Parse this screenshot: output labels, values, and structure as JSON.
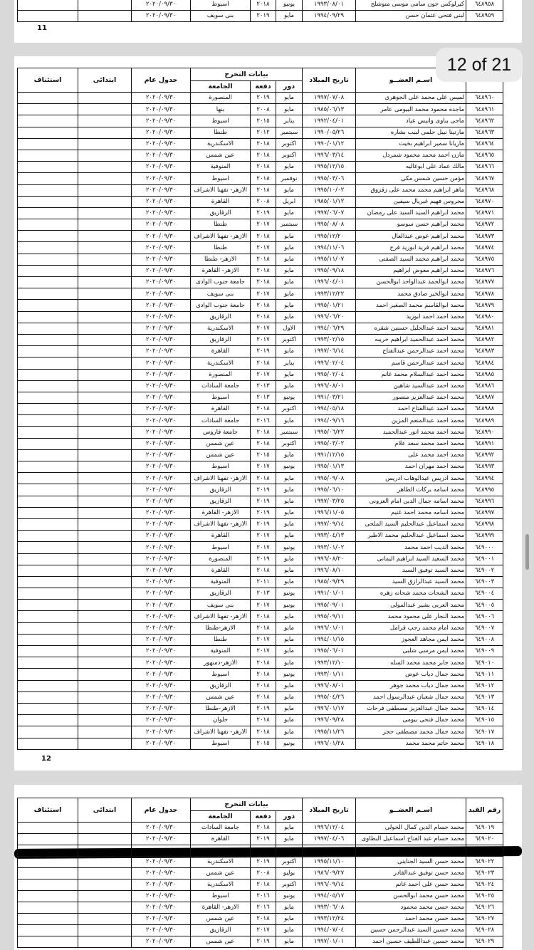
{
  "page_11": {
    "rows": [
      [
        "٦٤٨٩٥٨",
        "كيرلوكس جون سامى موسى متوشلح",
        "١٩٩٣/٠٨/٠١",
        "يونيو",
        "٢٠١٨",
        "اسيوط",
        "٢٠٢٠/٠٩/٣٠"
      ],
      [
        "٦٤٨٩٥٩",
        "لبنى فتحى عثمان حسن",
        "١٩٩٤/٠٩/٢٩",
        "مايو",
        "٢٠١٩",
        "بنى سويف",
        "٢٠٢٠/٠٩/٣٠"
      ]
    ],
    "page_number": "11"
  },
  "page_indicator": "12 of 21",
  "page_12": {
    "header": {
      "name": "اسـم العضــو",
      "birth_date": "تاريخ الميلاد",
      "graduation": "بيانات التخرج",
      "session": "دور",
      "batch": "دفعة",
      "university": "الجامعة",
      "general": "جدول عام",
      "primary": "ابتدائى",
      "appeal": "استئناف"
    },
    "rows": [
      [
        "٦٤٨٩٦٠",
        "لميس على محمد على الجوهرى",
        "١٩٩٧/٠٧/٠٨",
        "مايو",
        "٢٠١٩",
        "المنصورة",
        "٢٠٢٠/٠٩/٣٠"
      ],
      [
        "٦٤٨٩٦١",
        "ماجده محمود محمد البيومى عامر",
        "١٩٨٥/٠٦/١٣",
        "مايو",
        "٢٠٠٨",
        "بنها",
        "٢٠٢٠/٠٩/٣٠"
      ],
      [
        "٦٤٨٩٦٢",
        "ماجى بباوى وانيس عياد",
        "١٩٩٢/٠٤/٠١",
        "يناير",
        "٢٠١٥",
        "اسيوط",
        "٢٠٢٠/٠٩/٣٠"
      ],
      [
        "٦٤٨٩٦٣",
        "مارتينا نبيل حلمى لبيب بشاره",
        "١٩٩٠/٠٥/٢٦",
        "سبتمبر",
        "٢٠١٢",
        "طنطا",
        "٢٠٢٠/٠٩/٣٠"
      ],
      [
        "٦٤٨٩٦٤",
        "ماريانا سمير ابراهيم بخيت",
        "١٩٩٠/٠١/١٢",
        "اكتوبر",
        "٢٠١٨",
        "الاسكندرية",
        "٢٠٢٠/٠٩/٣٠"
      ],
      [
        "٦٤٨٩٦٥",
        "مازن احمد محمد محمود شمردل",
        "١٩٩٦/٠٣/١٤",
        "اكتوبر",
        "٢٠١٨",
        "عين شمس",
        "٢٠٢٠/٠٩/٣٠"
      ],
      [
        "٦٤٨٩٦٦",
        "مالك عماد على ابوغاليه",
        "١٩٩٥/١٢/١٥",
        "مايو",
        "٢٠١٨",
        "المنوفية",
        "٢٠٢٠/٠٩/٣٠"
      ],
      [
        "٦٤٨٩٦٧",
        "مؤمن حسين شمس مكى",
        "١٩٩٥/٠٣/٠٦",
        "نوفمبر",
        "٢٠١٨",
        "اسيوط",
        "٢٠٢٠/٠٩/٣٠"
      ],
      [
        "٦٤٨٩٦٨",
        "ماهر ابراهيم محمد محمد على زقزوق",
        "١٩٩٥/١٠/٠٢",
        "مايو",
        "٢٠١٨",
        "الازهر- تفهنا الاشراف",
        "٢٠٢٠/٠٩/٣٠"
      ],
      [
        "٦٤٨٩٧٠",
        "مجروس فهيم غبريال سيفين",
        "١٩٨٥/٠١/١٢",
        "ابريل",
        "٢٠٠٨",
        "القاهرة",
        "٢٠٢٠/٠٩/٣٠"
      ],
      [
        "٦٤٨٩٧١",
        "محمد ابراهيم السيد السيد على رمضان",
        "١٩٩٧/٠٦/٠٧",
        "مايو",
        "٢٠١٩",
        "الزقازيق",
        "٢٠٢٠/٠٩/٣٠"
      ],
      [
        "٦٤٨٩٧٢",
        "محمد ابراهيم حسن سوسو",
        "١٩٩٥/٠٨/٠٨",
        "سبتمبر",
        "٢٠١٧",
        "طنطا",
        "٢٠٢٠/٠٩/٣٠"
      ],
      [
        "٦٤٨٩٧٣",
        "محمد ابراهيم عوض عبدالعال",
        "١٩٩٥/١٢/٢٠",
        "مايو",
        "٢٠١٨",
        "الازهر- تفهنا الاشراف",
        "٢٠٢٠/٠٩/٣٠"
      ],
      [
        "٦٤٨٩٧٤",
        "محمد ابراهيم فريد ابوزيد فرج",
        "١٩٩٤/١١/٠٦",
        "مايو",
        "٢٠١٧",
        "طنطا",
        "٢٠٢٠/٠٩/٣٠"
      ],
      [
        "٦٤٨٩٧٥",
        "محمد ابراهيم محمد السيد الصفتى",
        "١٩٩٥/١١/٠٧",
        "مايو",
        "٢٠١٨",
        "الازهر- طنطا",
        "٢٠٢٠/٠٩/٣٠"
      ],
      [
        "٦٤٨٩٧٦",
        "محمد ابراهيم معوض ابراهيم",
        "١٩٩٥/٠٩/١٨",
        "مايو",
        "٢٠١٨",
        "الازهر- القاهرة",
        "٢٠٢٠/٠٩/٣٠"
      ],
      [
        "٦٤٨٩٧٧",
        "محمد ابوالحمد عبدالواحد ابوالحسن",
        "١٩٩٦/٠٤/٠١",
        "مايو",
        "٢٠١٨",
        "جامعة جنوب الوادى",
        "٢٠٢٠/٠٩/٣٠"
      ],
      [
        "٦٤٨٩٧٨",
        "محمد ابوالخير صادق محمد",
        "١٩٩٣/١٢/٢٢",
        "مايو",
        "٢٠١٧",
        "بنى سويف",
        "٢٠٢٠/٠٩/٣٠"
      ],
      [
        "٦٤٨٩٧٩",
        "محمد ابوالقاسم محمد الصغير احمد",
        "١٩٩٥/٠١/٢١",
        "مايو",
        "٢٠١٨",
        "جامعة جنوب الوادى",
        "٢٠٢٠/٠٩/٣٠"
      ],
      [
        "٦٤٨٩٨٠",
        "محمد احمد احمد ابوزيد",
        "١٩٩٦/٠٦/٢٠",
        "مايو",
        "٢٠١٨",
        "الزقازيق",
        "٢٠٢٠/٠٩/٣٠"
      ],
      [
        "٦٤٨٩٨١",
        "محمد احمد عبدالجليل حسنين شقره",
        "١٩٩٤/٠٦/٢٩",
        "الاول",
        "٢٠١٧",
        "الاسكندرية",
        "٢٠٢٠/٠٩/٣٠"
      ],
      [
        "٦٤٨٩٨٢",
        "محمد احمد عبدالحميد ابراهيم خريبه",
        "١٩٩٣/٠٢/١٥",
        "اكتوبر",
        "٢٠١٧",
        "الزقازيق",
        "٢٠٢٠/٠٩/٣٠"
      ],
      [
        "٦٤٨٩٨٣",
        "محمد احمد عبدالرحمن عبدالفتاح",
        "١٩٩٧/٠٦/١٤",
        "مايو",
        "٢٠١٩",
        "القاهرة",
        "٢٠٢٠/٠٩/٣٠"
      ],
      [
        "٦٤٨٩٨٤",
        "محمد احمد عبدالرحمن قاسم",
        "١٩٩٦/٠٢/٠٤",
        "يناير",
        "٢٠١٨",
        "الاسكندرية",
        "٢٠٢٠/٠٩/٣٠"
      ],
      [
        "٦٤٨٩٨٥",
        "محمد احمد عبدالسلام محمد غانم",
        "١٩٩٥/٠٢/٠٤",
        "مايو",
        "٢٠١٧",
        "المنصورة",
        "٢٠٢٠/٠٩/٣٠"
      ],
      [
        "٦٤٨٩٨٦",
        "محمد احمد عبدالسيد شاهين",
        "١٩٩٦/٠٨/٠١",
        "مايو",
        "٢٠١٣",
        "جامعة السادات",
        "٢٠٢٠/٠٩/٣٠"
      ],
      [
        "٦٤٨٩٨٧",
        "محمد احمد عبدالعزيز منصور",
        "١٩٩١/٠٣/٢١",
        "يونيو",
        "٢٠١٣",
        "اسيوط",
        "٢٠٢٠/٠٩/٣٠"
      ],
      [
        "٦٤٨٩٨٨",
        "محمد احمد عبدالفتاح احمد",
        "١٩٩٤/٠٥/١٨",
        "اكتوبر",
        "٢٠١٨",
        "القاهرة",
        "٢٠٢٠/٠٩/٣٠"
      ],
      [
        "٦٤٨٩٨٩",
        "محمد احمد عبدالمنعم المزين",
        "١٩٩٤/٠٩/١٦",
        "مايو",
        "٢٠١٦",
        "جامعة السادات",
        "٢٠٢٠/٠٩/٣٠"
      ],
      [
        "٦٤٨٩٩٠",
        "محمد احمد محمد انور عبدالحميد",
        "١٩٩٥/٠٦/٢٢",
        "سبتمبر",
        "٢٠١٨",
        "جامعة فاروس",
        "٢٠٢٠/٠٩/٣٠"
      ],
      [
        "٦٤٨٩٩١",
        "محمد احمد محمد سعد علام",
        "١٩٩٥/٠٣/٠٢",
        "اكتوبر",
        "٢٠١٨",
        "عين شمس",
        "٢٠٢٠/٠٩/٣٠"
      ],
      [
        "٦٤٨٩٩٢",
        "محمد احمد محمد على",
        "١٩٩١/١٢/١٥",
        "مايو",
        "٢٠١٥",
        "عين شمس",
        "٢٠٢٠/٠٩/٣٠"
      ],
      [
        "٦٤٨٩٩٣",
        "محمد احمد مهران احمد",
        "١٩٩٥/٠١/١٣",
        "يونيو",
        "٢٠١٧",
        "اسيوط",
        "٢٠٢٠/٠٩/٣٠"
      ],
      [
        "٦٤٨٩٩٤",
        "محمد ادريس عبدالوهاب ادريس",
        "١٩٩٥/٠٩/٠٨",
        "مايو",
        "٢٠١٨",
        "الازهر- تفهنا الاشراف",
        "٢٠٢٠/٠٩/٣٠"
      ],
      [
        "٦٤٨٩٩٥",
        "محمد اسامه بركات الطاهر",
        "١٩٩٥/٠٦/١٠",
        "مايو",
        "٢٠١٩",
        "الزقازيق",
        "٢٠٢٠/٠٩/٣٠"
      ],
      [
        "٦٤٨٩٩٦",
        "محمد اسامه جمال الدين امام العزونى",
        "١٩٩٧/٠٣/٢٥",
        "مايو",
        "٢٠١٩",
        "الزقازيق",
        "٢٠٢٠/٠٩/٣٠"
      ],
      [
        "٦٤٨٩٩٧",
        "محمد اسامه محمد احمد غنيم",
        "١٩٩٦/١١/٠٥",
        "مايو",
        "٢٠١٩",
        "الازهر- القاهرة",
        "٢٠٢٠/٠٩/٣٠"
      ],
      [
        "٦٤٨٩٩٨",
        "محمد اسماعيل عبدالحليم السيد الملجى",
        "١٩٩٧/٠٩/١٤",
        "مايو",
        "٢٠١٩",
        "الازهر- تفهنا الاشراف",
        "٢٠٢٠/٠٩/٣٠"
      ],
      [
        "٦٤٨٩٩٩",
        "محمد اسماعيل عبدالحليم محمد الاطير",
        "١٩٩٣/٠٤/١٣",
        "مايو",
        "٢٠١٧",
        "القاهرة",
        "٢٠٢٠/٠٩/٣٠"
      ],
      [
        "٦٤٩٠٠٠",
        "محمد الديب احمد محمد",
        "١٩٩٣/٠١/٠٢",
        "يونيو",
        "٢٠١٧",
        "اسيوط",
        "٢٠٢٠/٠٩/٣٠"
      ],
      [
        "٦٤٩٠٠١",
        "محمد السعيد السيد ابراهيم اليمانى",
        "١٩٩٦/٠٨/٢٠",
        "مايو",
        "٢٠١٩",
        "المنصورة",
        "٢٠٢٠/٠٩/٣٠"
      ],
      [
        "٦٤٩٠٠٢",
        "محمد السيد توفيق السيد",
        "١٩٩٦/٠٨/١٠",
        "مايو",
        "٢٠١٨",
        "القاهرة",
        "٢٠٢٠/٠٩/٣٠"
      ],
      [
        "٦٤٩٠٠٣",
        "محمد السيد عبدالرازق السيد",
        "١٩٨٥/٠٩/٢٩",
        "مايو",
        "٢٠١١",
        "المنوفية",
        "٢٠٢٠/٠٩/٣٠"
      ],
      [
        "٦٤٩٠٠٤",
        "محمد الشحات محمد شحاته زهره",
        "١٩٩١/٠١/٠١",
        "يونيو",
        "٢٠١٣",
        "الزقازيق",
        "٢٠٢٠/٠٩/٣٠"
      ],
      [
        "٦٤٩٠٠٥",
        "محمد العربى بشير عبدالمولى",
        "١٩٩٥/٠٩/٠١",
        "يونيو",
        "٢٠١٧",
        "بنى سويف",
        "٢٠٢٠/٠٩/٣٠"
      ],
      [
        "٦٤٩٠٠٦",
        "محمد النجار على محمود محمد",
        "١٩٩٥/٠٩/١١",
        "مايو",
        "٢٠١٨",
        "الازهر- تفهنا الاشراف",
        "٢٠٢٠/٠٩/٣٠"
      ],
      [
        "٦٤٩٠٠٧",
        "محمد امام محمد رجب قرامل",
        "١٩٩٦/٠١/٠١",
        "مايو",
        "٢٠١٨",
        "الازهر-طنطا",
        "٢٠٢٠/٠٩/٣٠"
      ],
      [
        "٦٤٩٠٠٨",
        "محمد ايمن مجاهد العجوز",
        "١٩٩٤/٠١/١٥",
        "مايو",
        "٢٠١٧",
        "طنطا",
        "٢٠٢٠/٠٩/٣٠"
      ],
      [
        "٦٤٩٠٠٩",
        "محمد ايمن مرسى شلبى",
        "١٩٩٥/٠٦/٠١",
        "مايو",
        "٢٠١٧",
        "المنوفية",
        "٢٠٢٠/٠٩/٣٠"
      ],
      [
        "٦٤٩٠١٠",
        "محمد جابر محمد محمد السله",
        "١٩٩٣/١٢/١٠",
        "مايو",
        "٢٠١٨",
        "الازهر-دمنهور",
        "٢٠٢٠/٠٩/٣٠"
      ],
      [
        "٦٤٩٠١١",
        "محمد جمال دياب عوض",
        "١٩٩٣/٠١/١١",
        "يونيو",
        "٢٠١٨",
        "اسيوط",
        "٢٠٢٠/٠٩/٣٠"
      ],
      [
        "٦٤٩٠١٢",
        "محمد جمال دياب محمد جوهر",
        "١٩٩٦/٠٨/٠١",
        "مايو",
        "٢٠١٨",
        "الزقازيق",
        "٢٠٢٠/٠٩/٣٠"
      ],
      [
        "٦٤٩٠١٣",
        "محمد جمال شعبان عبدالرسول احمد",
        "١٩٩٥/٠٤/٢٦",
        "مايو",
        "٢٠١٨",
        "عين شمس",
        "٢٠٢٠/٠٩/٣٠"
      ],
      [
        "٦٤٩٠١٤",
        "محمد جمال عبدالعزيز مصطفى فرحات",
        "١٩٩٦/٠١/١٧",
        "مايو",
        "٢٠١٩",
        "الازهر-طنطا",
        "٢٠٢٠/٠٩/٣٠"
      ],
      [
        "٦٤٩٠١٥",
        "محمد جمال فتحى بيومى",
        "١٩٩٦/٠٩/٢٨",
        "مايو",
        "٢٠١٨",
        "حلوان",
        "٢٠٢٠/٠٩/٣٠"
      ],
      [
        "٦٤٩٠١٧",
        "محمد جمال محمد مصطفى حجر",
        "١٩٩٥/١١/٢٦",
        "مايو",
        "٢٠١٨",
        "الازهر- تفهنا الاشراف",
        "٢٠٢٠/٠٩/٣٠"
      ],
      [
        "٦٤٩٠١٨",
        "محمد حاتم محمد محمد",
        "١٩٩٦/٠١/٢٨",
        "يونيو",
        "٢٠١٥",
        "اسيوط",
        "٢٠٢٠/٠٩/٣٠"
      ]
    ],
    "page_number": "12"
  },
  "page_13": {
    "header": {
      "registry": "رقم القيد",
      "name": "اسـم العضــو",
      "birth_date": "تاريخ الميلاد",
      "graduation": "بيانات التخرج",
      "session": "دور",
      "batch": "دفعة",
      "university": "الجامعة",
      "general": "جدول عام",
      "primary": "ابتدائى",
      "appeal": "استئناف"
    },
    "rows": [
      [
        "٦٤٩٠١٩",
        "محمد حسام الدين كمال الخولى",
        "١٩٩٦/١٢/٠٤",
        "مايو",
        "٢٠١٨",
        "جامعة السادات",
        "٢٠٢٠/٠٩/٣٠"
      ],
      [
        "٦٤٩٠٢٠",
        "محمد حسام عبد الفتاح اسماعيل البطاوى",
        "١٩٩٧/٠٤/٠٦",
        "مايو",
        "٢٠١٩",
        "القاهرة",
        "٢٠٢٠/٠٩/٣٠"
      ],
      [
        "٦٤٩٠٢٢",
        "محمد حسن السيد الجناينى",
        "١٩٩٥/١١/١٠",
        "اكتوبر",
        "٢٠١٩",
        "الاسكندرية",
        "٢٠٢٠/٠٩/٣٠"
      ],
      [
        "٦٤٩٠٢٣",
        "محمد حسن توفيق عبدالقادر",
        "١٩٨٦/٠٩/٢٧",
        "يوليو",
        "٢٠٠٨",
        "عين شمس",
        "٢٠٢٠/٠٩/٣٠"
      ],
      [
        "٦٤٩٠٢٤",
        "محمد حسن على احمد غانم",
        "١٩٩٦/٠٩/١٤",
        "اكتوبر",
        "٢٠١٨",
        "الاسكندرية",
        "٢٠٢٠/٠٩/٣٠"
      ],
      [
        "٦٤٩٠٢٥",
        "محمد حسن محمد ابوالحسن",
        "١٩٩٤/٠٥/١٧",
        "يونيو",
        "٢٠١٦",
        "اسيوط",
        "٢٠٢٠/٠٩/٣٠"
      ],
      [
        "٦٤٩٠٢٦",
        "محمد حسن محمد محمود",
        "١٩٩٣/٠٦/٠٨",
        "مايو",
        "٢٠١٦",
        "الازهر- القاهرة",
        "٢٠٢٠/٠٩/٣٠"
      ],
      [
        "٦٤٩٠٢٧",
        "محمد حسن محمد احمد",
        "١٩٩٣/١٢/٢٤",
        "مايو",
        "٢٠١٨",
        "عين شمس",
        "٢٠٢٠/٠٩/٣٠"
      ],
      [
        "٦٤٩٠٢٨",
        "محمد حسين السيد عبدالرحمن حسين",
        "١٩٩٤/٠٧/٠٤",
        "مايو",
        "٢٠١٧",
        "الزقازيق",
        "٢٠٢٠/٠٩/٣٠"
      ],
      [
        "٦٤٩٠٢٩",
        "محمد حسين عبداللطيف حسين احمد",
        "١٩٩٧/٠١/٠١",
        "مايو",
        "٢٠١٩",
        "عين شمس",
        "٢٠٢٠/٠٩/٣٠"
      ]
    ]
  }
}
